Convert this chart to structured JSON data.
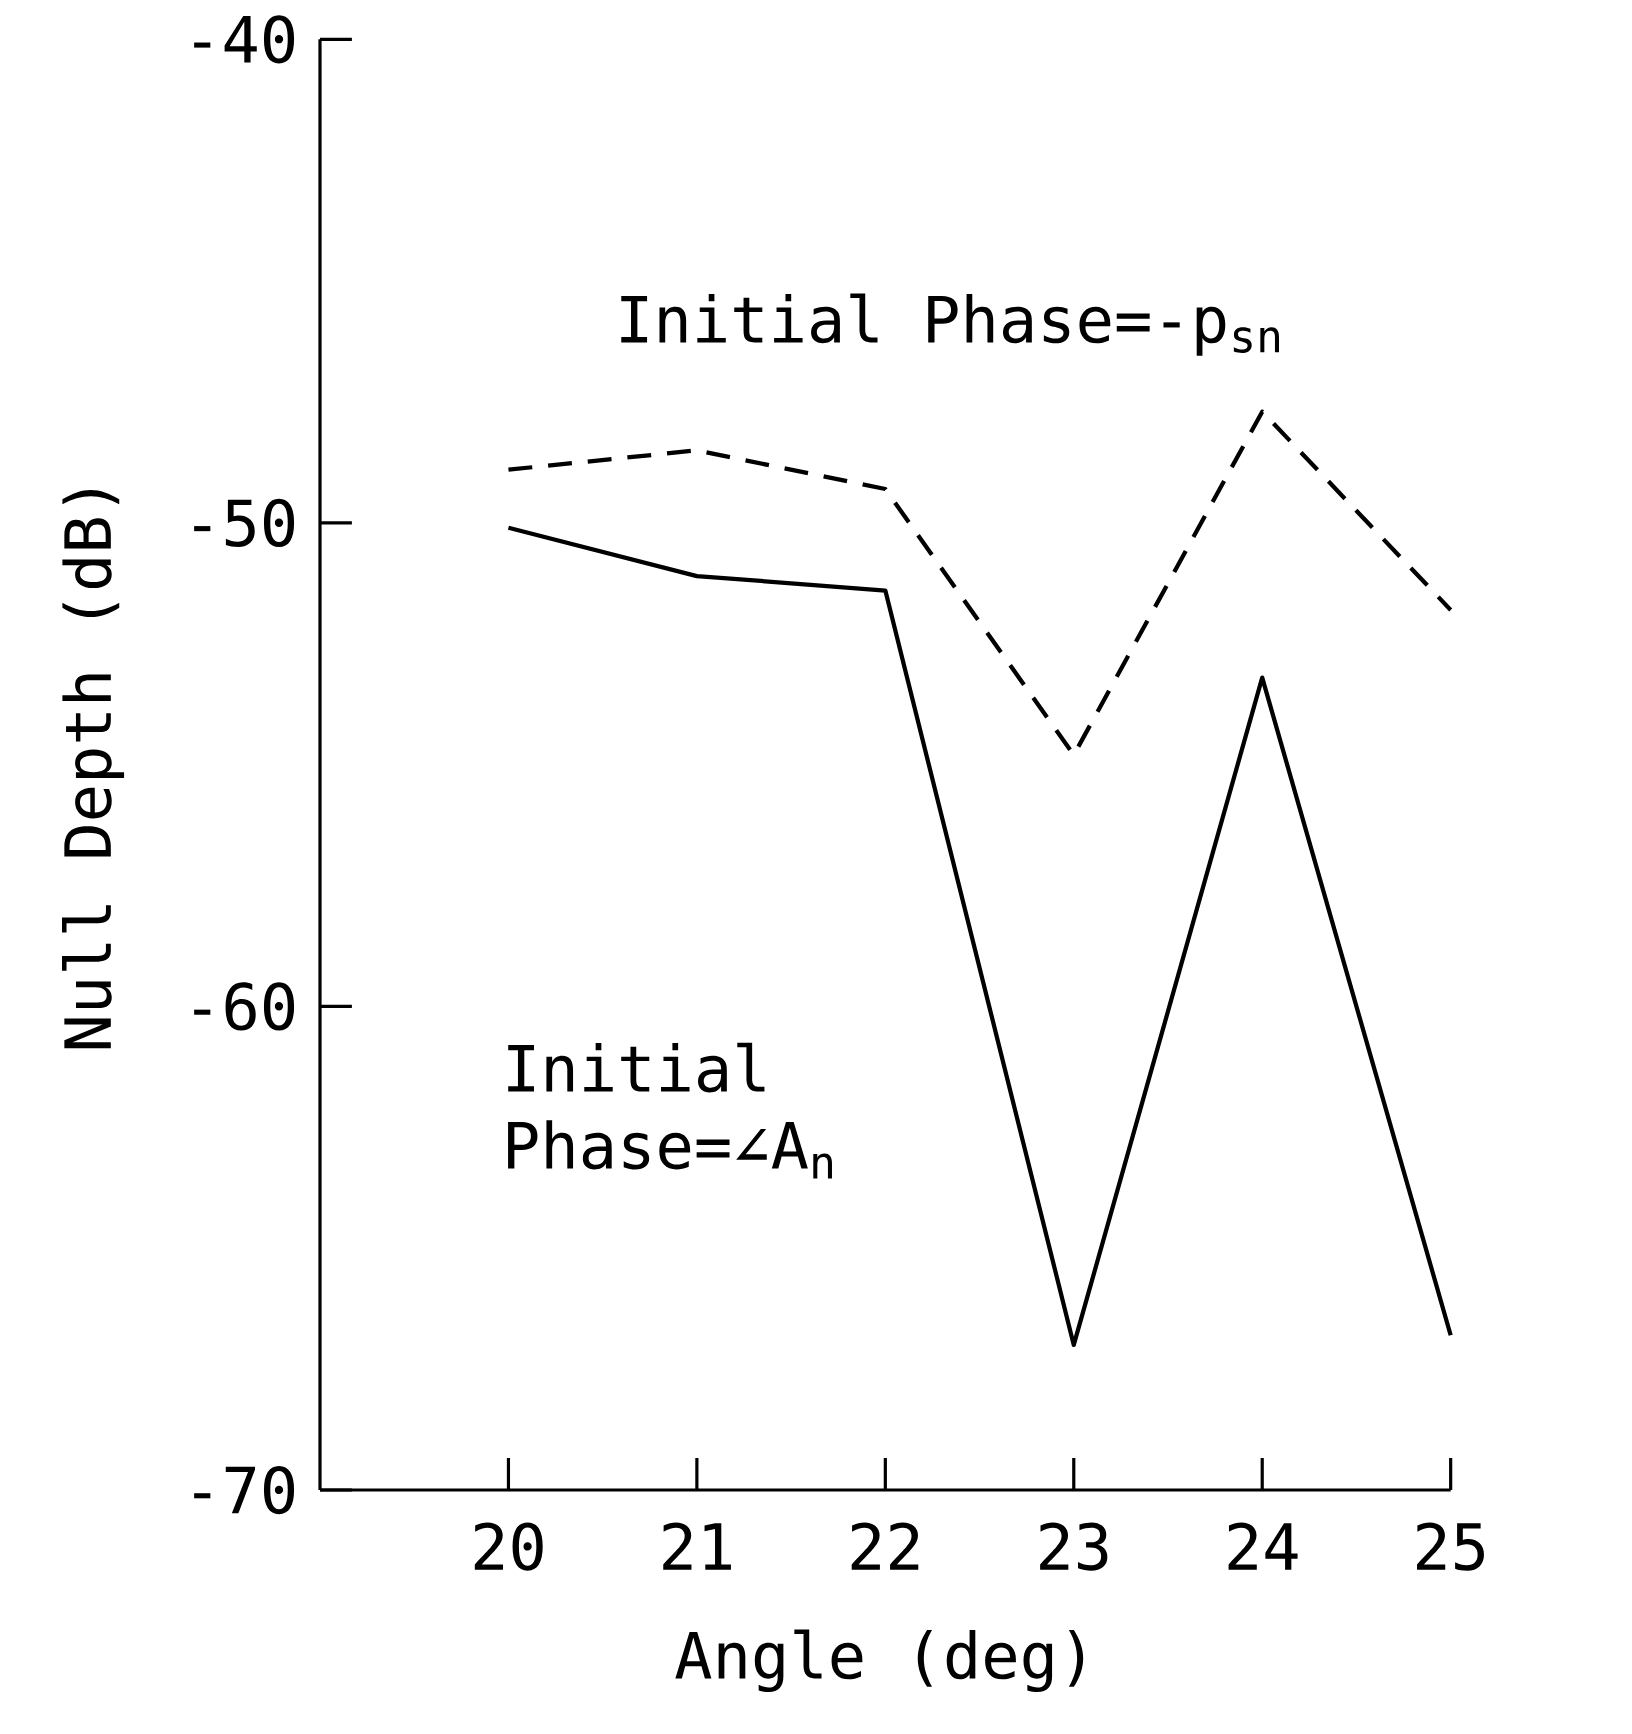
{
  "chart_data": {
    "type": "line",
    "xlabel": "Angle (deg)",
    "ylabel": "Null Depth (dB)",
    "x": [
      20,
      21,
      22,
      23,
      24,
      25
    ],
    "series": [
      {
        "name": "Initial Phase=-p$_{sn}$",
        "color": "#000000",
        "line_style": "dashed",
        "values": [
          -48.9,
          -48.5,
          -49.3,
          -54.8,
          -47.7,
          -51.8
        ]
      },
      {
        "name": "Initial Phase=∠A$_{n}$",
        "color": "#000000",
        "line_style": "solid",
        "values": [
          -50.1,
          -51.1,
          -51.4,
          -67.0,
          -53.2,
          -66.8
        ]
      }
    ],
    "xlim": [
      19,
      25
    ],
    "ylim": [
      -70,
      -40
    ],
    "xticks": [
      20,
      21,
      22,
      23,
      24,
      25
    ],
    "yticks": [
      -70,
      -60,
      -50,
      -40
    ],
    "grid": false,
    "legend": false,
    "marker": "none"
  }
}
